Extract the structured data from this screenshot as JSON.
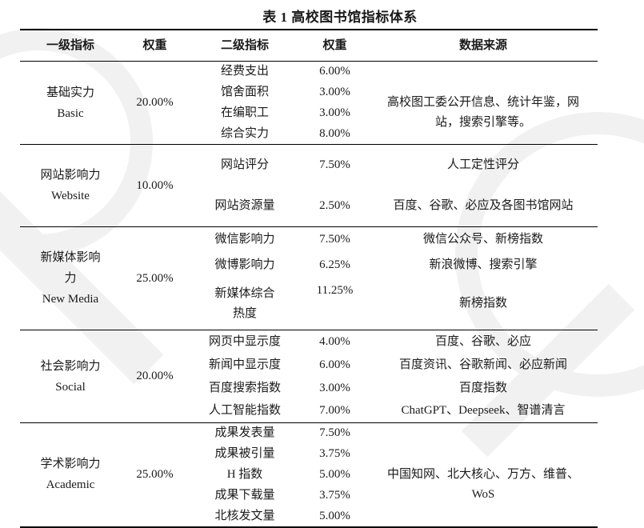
{
  "title": "表 1 高校图书馆指标体系",
  "header": {
    "col1": "一级指标",
    "col2": "权重",
    "col3": "二级指标",
    "col4": "权重",
    "col5": "数据来源"
  },
  "groups": [
    {
      "level1_zh": "基础实力",
      "level1_en": "Basic",
      "weight": "20.00%",
      "source": "高校图工委公开信息、统计年鉴，网站，搜索引擎等。",
      "indicators": [
        {
          "name": "经费支出",
          "weight": "6.00%"
        },
        {
          "name": "馆舍面积",
          "weight": "3.00%"
        },
        {
          "name": "在编职工",
          "weight": "3.00%"
        },
        {
          "name": "综合实力",
          "weight": "8.00%"
        }
      ]
    },
    {
      "level1_zh": "网站影响力",
      "level1_en": "Website",
      "weight": "10.00%",
      "indicators": [
        {
          "name": "网站评分",
          "weight": "7.50%",
          "source": "人工定性评分"
        },
        {
          "name": "网站资源量",
          "weight": "2.50%",
          "source": "百度、谷歌、必应及各图书馆网站"
        }
      ]
    },
    {
      "level1_zh": "新媒体影响\n力",
      "level1_en": "New Media",
      "weight": "25.00%",
      "indicators": [
        {
          "name": "微信影响力",
          "weight": "7.50%",
          "source": "微信公众号、新榜指数"
        },
        {
          "name": "微博影响力",
          "weight": "6.25%",
          "source": "新浪微博、搜索引擎"
        },
        {
          "name": "新媒体综合\n热度",
          "weight": "11.25%",
          "source": "新榜指数"
        }
      ]
    },
    {
      "level1_zh": "社会影响力",
      "level1_en": "Social",
      "weight": "20.00%",
      "indicators": [
        {
          "name": "网页中显示度",
          "weight": "4.00%",
          "source": "百度、谷歌、必应"
        },
        {
          "name": "新闻中显示度",
          "weight": "6.00%",
          "source": "百度资讯、谷歌新闻、必应新闻"
        },
        {
          "name": "百度搜索指数",
          "weight": "3.00%",
          "source": "百度指数"
        },
        {
          "name": "人工智能指数",
          "weight": "7.00%",
          "source": "ChatGPT、Deepseek、智谱清言"
        }
      ]
    },
    {
      "level1_zh": "学术影响力",
      "level1_en": "Academic",
      "weight": "25.00%",
      "source": "中国知网、北大核心、万方、维普、WoS",
      "indicators": [
        {
          "name": "成果发表量",
          "weight": "7.50%"
        },
        {
          "name": "成果被引量",
          "weight": "3.75%"
        },
        {
          "name": "H 指数",
          "weight": "5.00%"
        },
        {
          "name": "成果下载量",
          "weight": "3.75%"
        },
        {
          "name": "北核发文量",
          "weight": "5.00%"
        }
      ]
    }
  ]
}
